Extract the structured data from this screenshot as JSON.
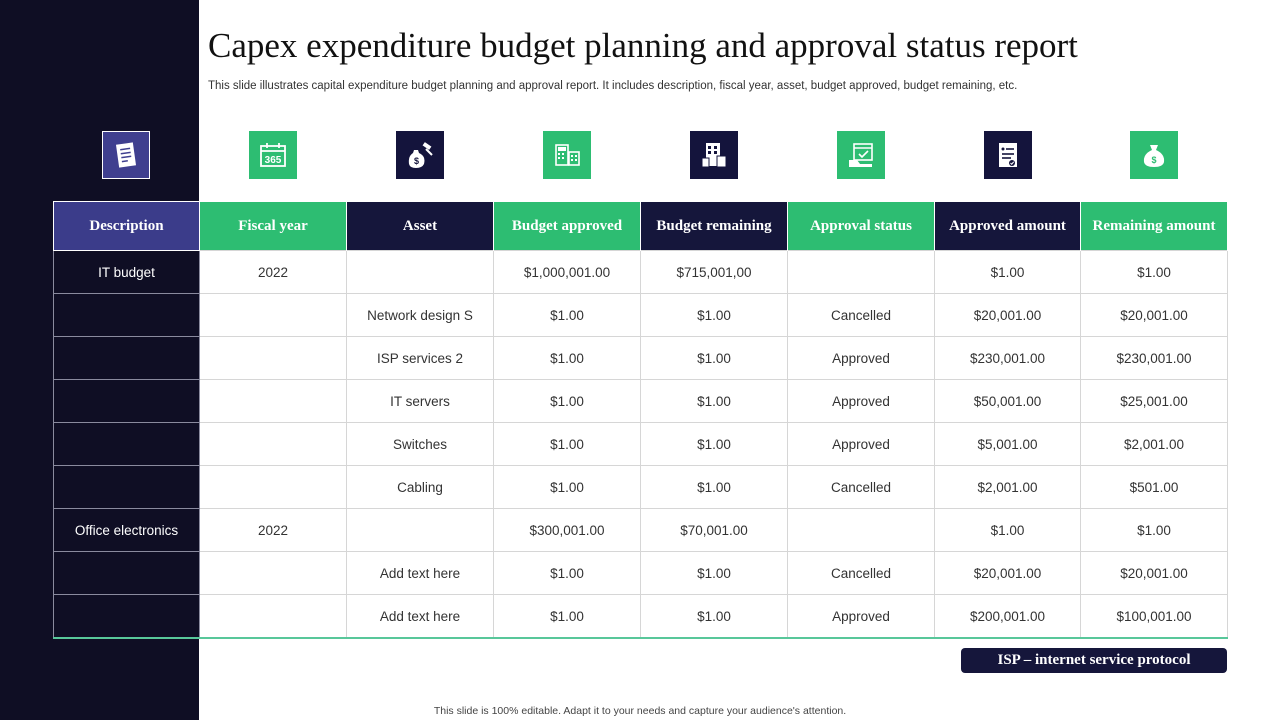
{
  "title": "Capex expenditure budget planning and approval status report",
  "subtitle": "This slide illustrates capital expenditure budget planning and approval report. It includes description, fiscal year, asset, budget approved, budget remaining, etc.",
  "icons": [
    {
      "name": "document-list-icon",
      "bg": "#3f3f8f"
    },
    {
      "name": "calendar-365-icon",
      "bg": "#2dbd72"
    },
    {
      "name": "money-bag-gavel-icon",
      "bg": "#14143c"
    },
    {
      "name": "calculator-building-icon",
      "bg": "#2dbd72"
    },
    {
      "name": "office-building-icon",
      "bg": "#14143c"
    },
    {
      "name": "approved-calendar-icon",
      "bg": "#2dbd72"
    },
    {
      "name": "checklist-icon",
      "bg": "#14143c"
    },
    {
      "name": "money-bag-icon",
      "bg": "#2dbd72"
    }
  ],
  "table": {
    "headers": [
      "Description",
      "Fiscal year",
      "Asset",
      "Budget approved",
      "Budget remaining",
      "Approval  status",
      "Approved  amount",
      "Remaining amount"
    ],
    "rows": [
      [
        "IT budget",
        "2022",
        "",
        "$1,000,001.00",
        "$715,001,00",
        "",
        "$1.00",
        "$1.00"
      ],
      [
        "",
        "",
        "Network design S",
        "$1.00",
        "$1.00",
        "Cancelled",
        "$20,001.00",
        "$20,001.00"
      ],
      [
        "",
        "",
        "ISP services 2",
        "$1.00",
        "$1.00",
        "Approved",
        "$230,001.00",
        "$230,001.00"
      ],
      [
        "",
        "",
        "IT servers",
        "$1.00",
        "$1.00",
        "Approved",
        "$50,001.00",
        "$25,001.00"
      ],
      [
        "",
        "",
        "Switches",
        "$1.00",
        "$1.00",
        "Approved",
        "$5,001.00",
        "$2,001.00"
      ],
      [
        "",
        "",
        "Cabling",
        "$1.00",
        "$1.00",
        "Cancelled",
        "$2,001.00",
        "$501.00"
      ],
      [
        "Office electronics",
        "2022",
        "",
        "$300,001.00",
        "$70,001.00",
        "",
        "$1.00",
        "$1.00"
      ],
      [
        "",
        "",
        "Add text here",
        "$1.00",
        "$1.00",
        "Cancelled",
        "$20,001.00",
        "$20,001.00"
      ],
      [
        "",
        "",
        "Add text here",
        "$1.00",
        "$1.00",
        "Approved",
        "$200,001.00",
        "$100,001.00"
      ]
    ]
  },
  "note": "ISP – internet service protocol",
  "footer": "This slide is 100% editable.  Adapt it to your needs and capture your audience's attention.",
  "colors": {
    "navy": "#15163b",
    "green": "#2dbd72",
    "sidebar": "#0f0e24",
    "header_first": "#3b3c8a"
  }
}
